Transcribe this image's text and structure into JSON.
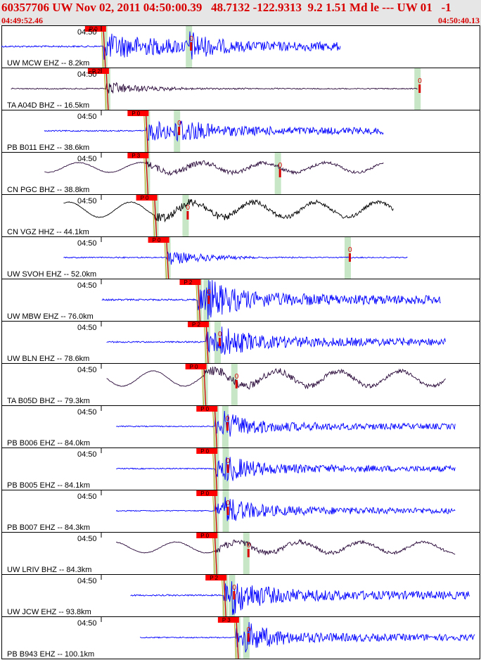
{
  "header": {
    "title": "60357706 UW Nov 02, 2011 04:50:00.39   48.7132 -122.9313  9.2 1.51 Md le --- UW 01   -1",
    "start_time": "04:49:52.46",
    "end_time": "04:50:40.13"
  },
  "colors": {
    "header_bg": "#e6e6e6",
    "header_text": "#d80000",
    "blue_trace": "#0000ff",
    "dark_trace": "#2a0a3a",
    "black_trace": "#000000",
    "pick_flag": "#ff0000",
    "window_band": "#b8e0b8"
  },
  "panels": [
    {
      "tick": "04:50",
      "label": "UW MCW EHZ -- 8.2km",
      "pick": "P 0",
      "p": 0.213,
      "s": 0.39,
      "color": "#0000ff",
      "style": "burst",
      "amp": 0.85,
      "start": 0.0,
      "end": 0.71
    },
    {
      "tick": "04:50",
      "label": "TA A04D BHZ -- 16.5km",
      "pick": "P 2",
      "p": 0.219,
      "s": 0.868,
      "color": "#2a0a3a",
      "style": "lowburst",
      "amp": 0.35,
      "start": 0.02,
      "end": 0.87
    },
    {
      "tick": "04:50",
      "label": "PB B011 EHZ -- 38.6km",
      "pick": "P 0",
      "p": 0.302,
      "s": 0.365,
      "color": "#0000ff",
      "style": "burst",
      "amp": 0.65,
      "start": 0.09,
      "end": 0.8
    },
    {
      "tick": "04:50",
      "label": "CN PGC BHZ -- 38.8km",
      "pick": "P 3",
      "p": 0.302,
      "s": 0.576,
      "color": "#2a0a3a",
      "style": "wave",
      "amp": 0.45,
      "start": 0.09,
      "end": 0.8
    },
    {
      "tick": "04:50",
      "label": "CN VGZ HHZ -- 44.1km",
      "pick": "P 0",
      "p": 0.32,
      "s": 0.383,
      "color": "#000000",
      "style": "wave",
      "amp": 0.7,
      "start": 0.13,
      "end": 0.82
    },
    {
      "tick": "04:50",
      "label": "UW SVOH EHZ -- 52.0km",
      "pick": "P 0",
      "p": 0.345,
      "s": 0.722,
      "color": "#0000ff",
      "style": "lowburst",
      "amp": 0.4,
      "start": 0.13,
      "end": 0.85
    },
    {
      "tick": "04:50",
      "label": "UW MBW EHZ -- 76.0km",
      "pick": "P 2",
      "p": 0.411,
      "s": 0.427,
      "color": "#0000ff",
      "style": "burst",
      "amp": 0.85,
      "start": 0.21,
      "end": 0.92
    },
    {
      "tick": "04:50",
      "label": "UW BLN EHZ -- 78.6km",
      "pick": "P 2",
      "p": 0.428,
      "s": 0.45,
      "color": "#0000ff",
      "style": "burst",
      "amp": 0.7,
      "start": 0.22,
      "end": 0.93
    },
    {
      "tick": "04:50",
      "label": "TA B05D BHZ -- 79.3km",
      "pick": "P 0",
      "p": 0.423,
      "s": 0.485,
      "color": "#2a0a3a",
      "style": "wave",
      "amp": 0.7,
      "start": 0.22,
      "end": 0.93
    },
    {
      "tick": "04:50",
      "label": "PB B006 EHZ -- 84.0km",
      "pick": "P 0",
      "p": 0.446,
      "s": 0.466,
      "color": "#0000ff",
      "style": "burst",
      "amp": 0.55,
      "start": 0.24,
      "end": 0.95
    },
    {
      "tick": "04:50",
      "label": "PB B005 EHZ -- 84.1km",
      "pick": "P 0",
      "p": 0.446,
      "s": 0.467,
      "color": "#0000ff",
      "style": "burst",
      "amp": 0.55,
      "start": 0.24,
      "end": 0.95
    },
    {
      "tick": "04:50",
      "label": "PB B007 EHZ -- 84.3km",
      "pick": "P 0",
      "p": 0.446,
      "s": 0.467,
      "color": "#0000ff",
      "style": "burst",
      "amp": 0.55,
      "start": 0.24,
      "end": 0.95
    },
    {
      "tick": "04:50",
      "label": "UW LRIV BHZ -- 84.3km",
      "pick": "P 0",
      "p": 0.446,
      "s": 0.51,
      "color": "#2a0a3a",
      "style": "wave",
      "amp": 0.5,
      "start": 0.24,
      "end": 0.95
    },
    {
      "tick": "04:50",
      "label": "UW JCW EHZ -- 93.8km",
      "pick": "P 2",
      "p": 0.465,
      "s": 0.48,
      "color": "#0000ff",
      "style": "burst",
      "amp": 0.75,
      "start": 0.27,
      "end": 0.98
    },
    {
      "tick": "04:50",
      "label": "PB B943 EHZ -- 100.1km",
      "pick": "P 3",
      "p": 0.491,
      "s": 0.51,
      "color": "#0000ff",
      "style": "burst",
      "amp": 0.6,
      "start": 0.29,
      "end": 0.99
    }
  ]
}
